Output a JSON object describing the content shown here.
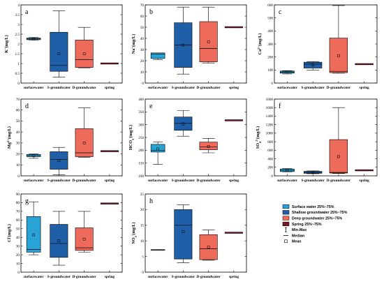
{
  "chart_data": [
    {
      "type": "box",
      "panel": "a",
      "ylabel": "K+(mg/L)",
      "ylabel_main": "K",
      "ylabel_sup": "+",
      "ylabel_unit": "(mg/L)",
      "ylim": [
        0,
        4
      ],
      "yticks": [
        0,
        0.5,
        1,
        1.5,
        2,
        2.5,
        3,
        3.5,
        4
      ],
      "ytick_labels": [
        "0",
        "0.5",
        "1",
        "1.5",
        "2",
        "2.5",
        "3",
        "3.5",
        "4"
      ],
      "categories": [
        "surfacewater",
        "S-groundwater",
        "D-groundwater",
        "spring"
      ],
      "boxes": [
        {
          "min": 2.2,
          "q1": 2.22,
          "median": 2.26,
          "q3": 2.3,
          "max": 2.33,
          "mean": 2.26
        },
        {
          "min": 0.3,
          "q1": 0.6,
          "median": 0.9,
          "q3": 2.6,
          "max": 3.7,
          "mean": 1.5
        },
        {
          "min": 0.78,
          "q1": 0.8,
          "median": 1.2,
          "q3": 2.2,
          "max": 2.85,
          "mean": 1.5
        },
        {
          "min": 1.0,
          "q1": 1.0,
          "median": 1.0,
          "q3": 1.0,
          "max": 1.0,
          "mean": null
        }
      ]
    },
    {
      "type": "box",
      "panel": "b",
      "ylabel": "Na+(mg/L)",
      "ylabel_main": "Na",
      "ylabel_sup": "+",
      "ylabel_unit": "(mg/L)",
      "ylim": [
        0,
        70
      ],
      "yticks": [
        0,
        10,
        20,
        30,
        40,
        50,
        60,
        70
      ],
      "ytick_labels": [
        "0",
        "10",
        "20",
        "30",
        "40",
        "50",
        "60",
        "70"
      ],
      "categories": [
        "surfacewater",
        "S-groundwater",
        "D-groundwater",
        "spring"
      ],
      "boxes": [
        {
          "min": 21,
          "q1": 22,
          "median": 26,
          "q3": 27,
          "max": 27,
          "mean": null
        },
        {
          "min": 8,
          "q1": 14,
          "median": 34,
          "q3": 54,
          "max": 68,
          "mean": 34
        },
        {
          "min": 18,
          "q1": 19,
          "median": 31,
          "q3": 55,
          "max": 68,
          "mean": 37
        },
        {
          "min": 50,
          "q1": 50,
          "median": 50,
          "q3": 50,
          "max": 50,
          "mean": null
        }
      ]
    },
    {
      "type": "box",
      "panel": "c",
      "ylabel": "Ca2+(mg/L)",
      "ylabel_main": "Ca",
      "ylabel_sup": "2+",
      "ylabel_unit": "(mg/L)",
      "ylim": [
        0,
        600
      ],
      "yticks": [
        0,
        100,
        200,
        300,
        400,
        500,
        600
      ],
      "ytick_labels": [
        "0",
        "100",
        "200",
        "300",
        "400",
        "500",
        "600"
      ],
      "categories": [
        "surfacewater",
        "S-groundwater",
        "D-groundwater",
        "spring"
      ],
      "boxes": [
        {
          "min": 70,
          "q1": 76,
          "median": 85,
          "q3": 92,
          "max": 95,
          "mean": 85
        },
        {
          "min": 100,
          "q1": 115,
          "median": 145,
          "q3": 160,
          "max": 165,
          "mean": 140
        },
        {
          "min": 75,
          "q1": 80,
          "median": 90,
          "q3": 345,
          "max": 595,
          "mean": 210
        },
        {
          "min": 145,
          "q1": 145,
          "median": 145,
          "q3": 145,
          "max": 145,
          "mean": null
        }
      ]
    },
    {
      "type": "box",
      "panel": "d",
      "ylabel": "Mg2+(mg/L)",
      "ylabel_main": "Mg",
      "ylabel_sup": "2+",
      "ylabel_unit": "(mg/L)",
      "ylim": [
        0,
        70
      ],
      "yticks": [
        0,
        10,
        20,
        30,
        40,
        50,
        60,
        70
      ],
      "ytick_labels": [
        "0",
        "10",
        "20",
        "30",
        "40",
        "50",
        "60",
        "70"
      ],
      "categories": [
        "surfacewater",
        "S-groundwater",
        "D-groundwater",
        "spring"
      ],
      "boxes": [
        {
          "min": 16,
          "q1": 17.5,
          "median": 18.5,
          "q3": 19.5,
          "max": 20,
          "mean": 18.5
        },
        {
          "min": 1,
          "q1": 6,
          "median": 15,
          "q3": 22,
          "max": 26,
          "mean": 14
        },
        {
          "min": 17,
          "q1": 17.5,
          "median": 21,
          "q3": 43,
          "max": 62,
          "mean": 30
        },
        {
          "min": 22.5,
          "q1": 22.5,
          "median": 22.5,
          "q3": 22.5,
          "max": 22.5,
          "mean": null
        }
      ]
    },
    {
      "type": "box",
      "panel": "e",
      "ylabel": "HCO3-(mg/L)",
      "ylabel_main": "HCO",
      "ylabel_sub": "3",
      "ylabel_sup": "-",
      "ylabel_unit": "(mg/L)",
      "ylim": [
        100,
        400
      ],
      "yticks": [
        100,
        150,
        200,
        250,
        300,
        350,
        400
      ],
      "ytick_labels": [
        "100",
        "150",
        "200",
        "250",
        "300",
        "350",
        "400"
      ],
      "categories": [
        "surfacewater",
        "S-groundwater",
        "D-groundwater",
        "spring"
      ],
      "boxes": [
        {
          "min": 145,
          "q1": 193,
          "median": 200,
          "q3": 223,
          "max": 233,
          "mean": 205
        },
        {
          "min": 255,
          "q1": 278,
          "median": 305,
          "q3": 330,
          "max": 355,
          "mean": 303
        },
        {
          "min": 190,
          "q1": 202,
          "median": 213,
          "q3": 232,
          "max": 246,
          "mean": 215
        },
        {
          "min": 317,
          "q1": 317,
          "median": 317,
          "q3": 317,
          "max": 317,
          "mean": null
        }
      ]
    },
    {
      "type": "box",
      "panel": "f",
      "ylabel": "SO42-(mg/L)",
      "ylabel_main": "SO",
      "ylabel_sub": "4",
      "ylabel_sup": "2-",
      "ylabel_unit": "(mg/L)",
      "ylim": [
        0,
        1800
      ],
      "yticks": [
        0,
        200,
        400,
        600,
        800,
        1000,
        1200,
        1400,
        1600,
        1800
      ],
      "ytick_labels": [
        "0",
        "200",
        "400",
        "600",
        "800",
        "1000",
        "1200",
        "1400",
        "1600",
        "1800"
      ],
      "categories": [
        "surfacewater",
        "S-groundwater",
        "D-groundwater",
        "spring"
      ],
      "boxes": [
        {
          "min": 95,
          "q1": 100,
          "median": 130,
          "q3": 160,
          "max": 170,
          "mean": 130
        },
        {
          "min": 50,
          "q1": 60,
          "median": 80,
          "q3": 105,
          "max": 115,
          "mean": 80
        },
        {
          "min": 55,
          "q1": 65,
          "median": 80,
          "q3": 850,
          "max": 1600,
          "mean": 450
        },
        {
          "min": 130,
          "q1": 130,
          "median": 130,
          "q3": 130,
          "max": 130,
          "mean": null
        }
      ]
    },
    {
      "type": "box",
      "panel": "g",
      "ylabel": "Cl-(mg/L)",
      "ylabel_main": "Cl",
      "ylabel_sup": "-",
      "ylabel_unit": "(mg/L)",
      "ylim": [
        0,
        90
      ],
      "yticks": [
        0,
        10,
        20,
        30,
        40,
        50,
        60,
        70,
        80,
        90
      ],
      "ytick_labels": [
        "0",
        "10",
        "20",
        "30",
        "40",
        "50",
        "60",
        "70",
        "80",
        "90"
      ],
      "categories": [
        "surfacewater",
        "S-groundwater",
        "D-groundwater",
        "spring"
      ],
      "boxes": [
        {
          "min": 20,
          "q1": 23,
          "median": 26,
          "q3": 64,
          "max": 81,
          "mean": 43
        },
        {
          "min": 8,
          "q1": 17,
          "median": 33,
          "q3": 55,
          "max": 70,
          "mean": 36
        },
        {
          "min": 23,
          "q1": 25,
          "median": 28,
          "q3": 51,
          "max": 70,
          "mean": 38
        },
        {
          "min": 79,
          "q1": 79,
          "median": 79,
          "q3": 79,
          "max": 79,
          "mean": null
        }
      ]
    },
    {
      "type": "box",
      "panel": "h",
      "ylabel": "NO3-(mg/L)",
      "ylabel_main": "NO",
      "ylabel_sub": "3",
      "ylabel_sup": "-",
      "ylabel_unit": "(mg/L)",
      "ylim": [
        0,
        25
      ],
      "yticks": [
        0,
        5,
        10,
        15,
        20,
        25
      ],
      "ytick_labels": [
        "0",
        "5",
        "10",
        "15",
        "20",
        "25"
      ],
      "categories": [
        "surfacewater",
        "S-groundwater",
        "D-groundwater",
        "spring"
      ],
      "boxes": [
        {
          "min": 7,
          "q1": 7,
          "median": 7,
          "q3": 7.2,
          "max": 7.2,
          "mean": null
        },
        {
          "min": 3,
          "q1": 4.2,
          "median": 15,
          "q3": 20,
          "max": 21.5,
          "mean": 13
        },
        {
          "min": 3.8,
          "q1": 4,
          "median": 7.5,
          "q3": 12,
          "max": 13.5,
          "mean": 8
        },
        {
          "min": 12.6,
          "q1": 12.6,
          "median": 12.6,
          "q3": 12.6,
          "max": 12.6,
          "mean": null
        }
      ]
    }
  ],
  "legend": {
    "items": [
      {
        "label": "Surface water 25%~75%",
        "color": "#29a3d6",
        "kind": "box"
      },
      {
        "label": "Shallow groundwater 25%~75%",
        "color": "#1f5fa8",
        "kind": "box"
      },
      {
        "label": "Deep groundwater 25%~75%",
        "color": "#ee6a5a",
        "kind": "box"
      },
      {
        "label": "Spring 25%~75%",
        "color": "#7a1a1f",
        "kind": "box"
      },
      {
        "label": "Min-Max",
        "kind": "whisker"
      },
      {
        "label": "Median",
        "kind": "line"
      },
      {
        "label": "Mean",
        "kind": "square"
      }
    ]
  },
  "colors": {
    "surfacewater": "#29a3d6",
    "s_groundwater": "#1f5fa8",
    "d_groundwater": "#ee6a5a",
    "spring": "#7a1a1f"
  }
}
